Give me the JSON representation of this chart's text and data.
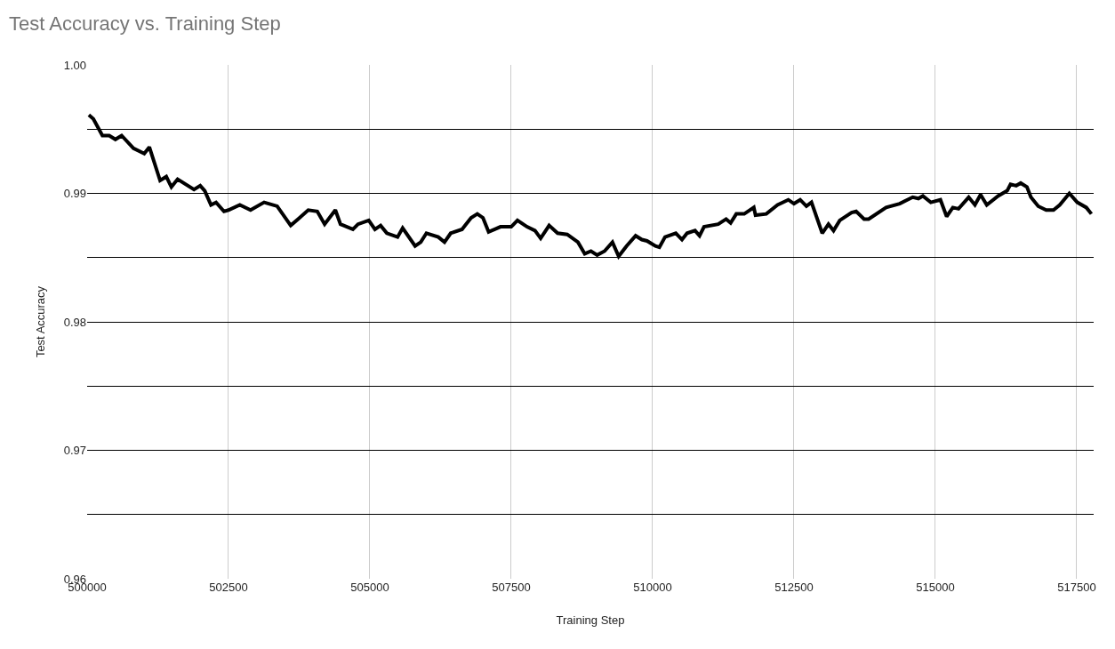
{
  "chart_data": {
    "type": "line",
    "title": "Test Accuracy vs. Training Step",
    "xlabel": "Training Step",
    "ylabel": "Test Accuracy",
    "x": [
      500030,
      500110,
      500270,
      500390,
      500500,
      500610,
      500820,
      501010,
      501100,
      501290,
      501400,
      501490,
      501600,
      501890,
      502000,
      502080,
      502190,
      502280,
      502420,
      502500,
      502700,
      502890,
      503130,
      503360,
      503600,
      503730,
      503910,
      504070,
      504200,
      504390,
      504480,
      504700,
      504790,
      504980,
      505090,
      505190,
      505300,
      505490,
      505580,
      505800,
      505900,
      506000,
      506210,
      506320,
      506430,
      506630,
      506790,
      506900,
      507000,
      507100,
      507310,
      507500,
      507610,
      507780,
      507920,
      508020,
      508170,
      508320,
      508490,
      508680,
      508800,
      508910,
      509020,
      509150,
      509290,
      509400,
      509540,
      509700,
      509810,
      509900,
      510050,
      510120,
      510220,
      510410,
      510520,
      510610,
      510750,
      510830,
      510910,
      511160,
      511300,
      511380,
      511480,
      511620,
      511790,
      511820,
      512010,
      512210,
      512400,
      512500,
      512610,
      512720,
      512810,
      513000,
      513110,
      513200,
      513310,
      513520,
      513600,
      513740,
      513820,
      514130,
      514370,
      514600,
      514700,
      514780,
      514920,
      515090,
      515200,
      515310,
      515410,
      515590,
      515700,
      515800,
      515910,
      516110,
      516270,
      516330,
      516430,
      516510,
      516620,
      516690,
      516820,
      516960,
      517090,
      517200,
      517370,
      517510,
      517670,
      517760
    ],
    "series": [
      {
        "color": "#000000",
        "values": [
          0.9961,
          0.9958,
          0.9945,
          0.9945,
          0.9942,
          0.9945,
          0.9935,
          0.9931,
          0.9936,
          0.991,
          0.9913,
          0.9905,
          0.9911,
          0.9903,
          0.9906,
          0.9902,
          0.9891,
          0.9893,
          0.9886,
          0.9887,
          0.9891,
          0.9887,
          0.9893,
          0.989,
          0.9875,
          0.988,
          0.9887,
          0.9886,
          0.9876,
          0.9887,
          0.9876,
          0.9872,
          0.9876,
          0.9879,
          0.9872,
          0.9875,
          0.9869,
          0.9866,
          0.9873,
          0.9859,
          0.9862,
          0.9869,
          0.9866,
          0.9862,
          0.9869,
          0.9872,
          0.9881,
          0.9884,
          0.9881,
          0.987,
          0.9874,
          0.9874,
          0.9879,
          0.9874,
          0.9871,
          0.9865,
          0.9875,
          0.9869,
          0.9868,
          0.9862,
          0.9853,
          0.9855,
          0.9852,
          0.9855,
          0.9862,
          0.9851,
          0.9859,
          0.9867,
          0.9864,
          0.9863,
          0.9859,
          0.9858,
          0.9866,
          0.9869,
          0.9864,
          0.9869,
          0.9871,
          0.9867,
          0.9874,
          0.9876,
          0.988,
          0.9877,
          0.9884,
          0.9884,
          0.9889,
          0.9883,
          0.9884,
          0.9891,
          0.9895,
          0.9892,
          0.9895,
          0.989,
          0.9893,
          0.9869,
          0.9876,
          0.9871,
          0.9879,
          0.9885,
          0.9886,
          0.988,
          0.988,
          0.9889,
          0.9892,
          0.9897,
          0.9896,
          0.9898,
          0.9893,
          0.9895,
          0.9882,
          0.9889,
          0.9888,
          0.9897,
          0.9891,
          0.9899,
          0.9891,
          0.9898,
          0.9902,
          0.9907,
          0.9906,
          0.9908,
          0.9905,
          0.9897,
          0.989,
          0.9887,
          0.9887,
          0.9891,
          0.99,
          0.9893,
          0.9889,
          0.9884
        ]
      }
    ],
    "xlim": [
      500000,
      517800
    ],
    "xticks": [
      500000,
      502500,
      505000,
      507500,
      510000,
      512500,
      515000,
      517500
    ],
    "ylim": [
      0.96,
      1.0
    ],
    "yticks": [
      0.96,
      {
        "value": 0.965,
        "label": null
      },
      0.97,
      {
        "value": 0.975,
        "label": null
      },
      0.98,
      {
        "value": 0.985,
        "label": null
      },
      0.99,
      {
        "value": 0.995,
        "label": null
      },
      {
        "value": 1.0,
        "label": "1.00"
      }
    ],
    "grid": true,
    "marker": "none",
    "line_style": "solid"
  }
}
